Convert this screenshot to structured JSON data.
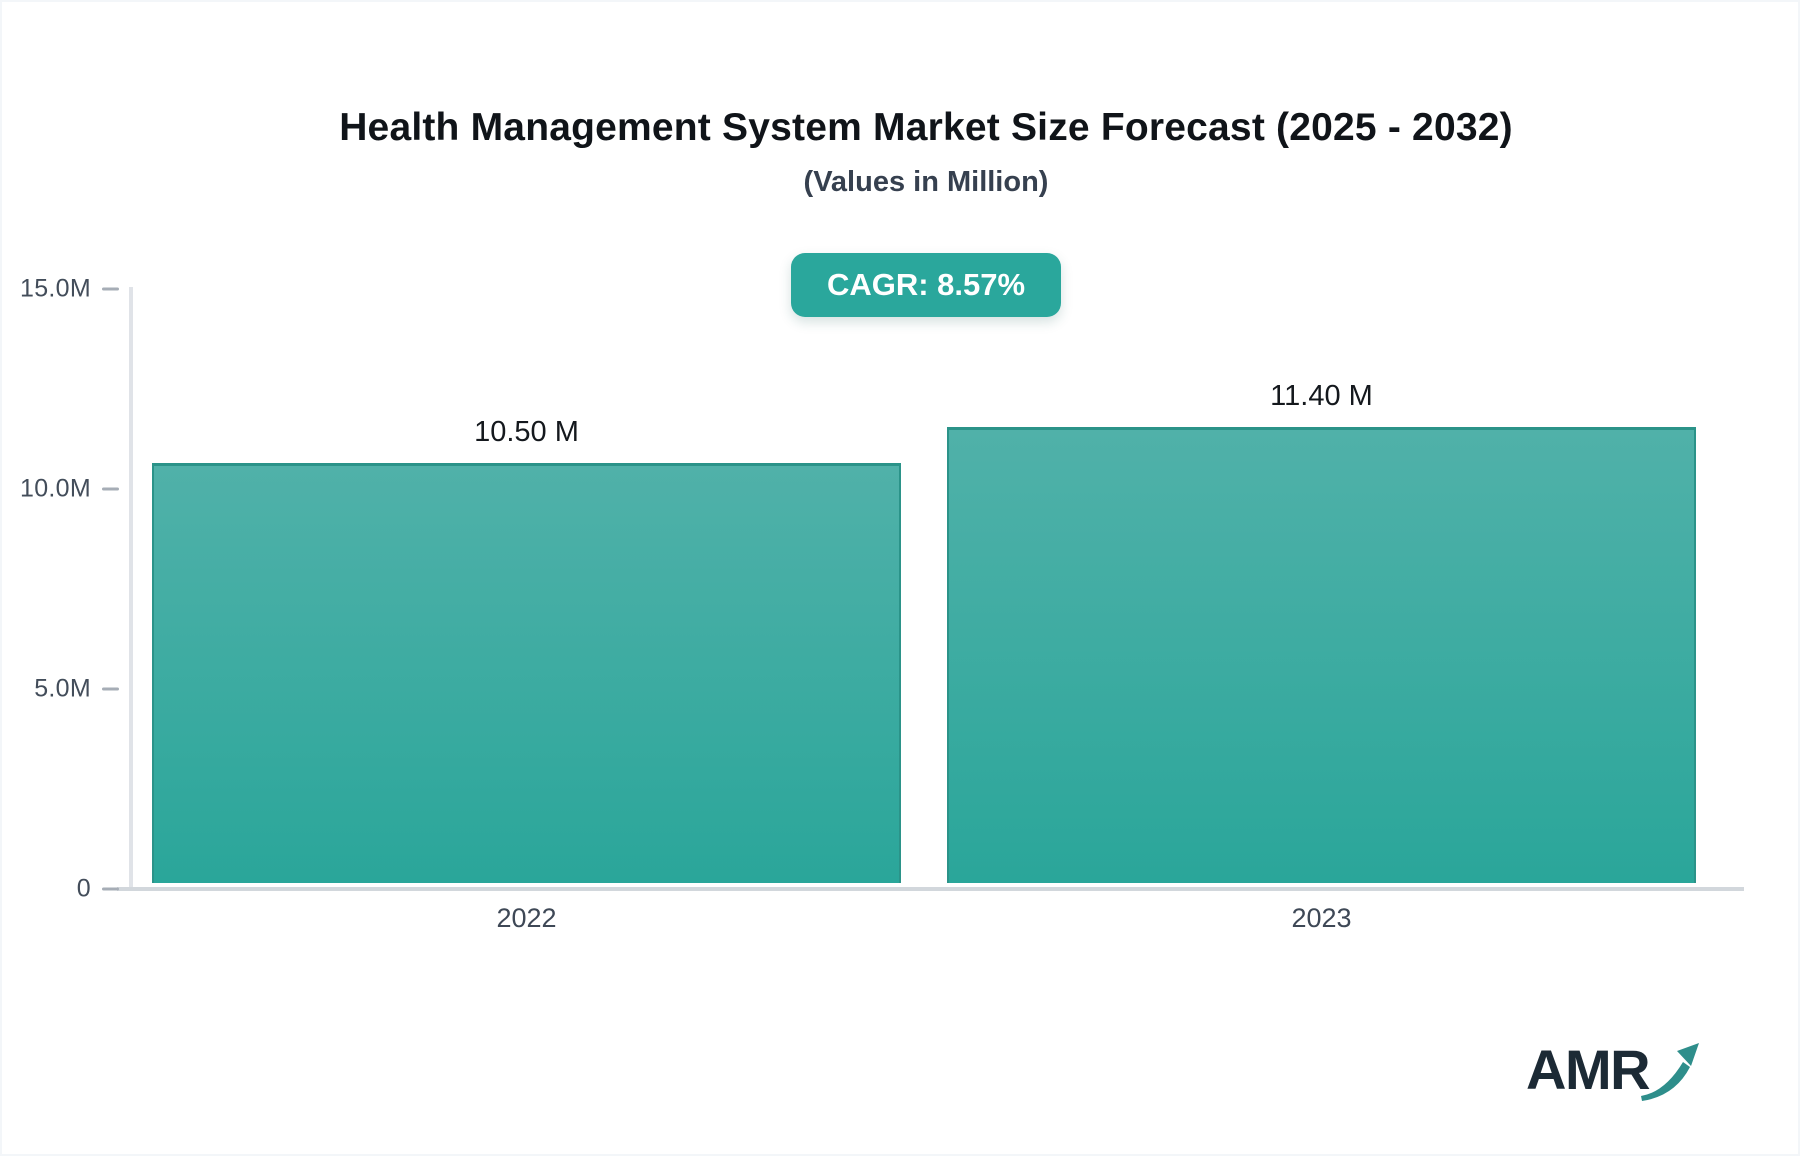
{
  "title": "Health Management System Market Size Forecast (2025 - 2032)",
  "subtitle": "(Values in Million)",
  "badge": {
    "label": "CAGR: 8.57%",
    "bg_color": "#2aa79c",
    "text_color": "#ffffff"
  },
  "chart_data": {
    "type": "bar",
    "title": "Health Management System Market Size Forecast (2025 - 2032)",
    "subtitle": "(Values in Million)",
    "categories": [
      "2022",
      "2023"
    ],
    "values": [
      10.5,
      11.4
    ],
    "value_labels": [
      "10.50 M",
      "11.40 M"
    ],
    "xlabel": "",
    "ylabel": "",
    "ylim": [
      0,
      15
    ],
    "yticks": {
      "values": [
        15,
        10,
        5,
        0
      ],
      "labels": [
        "15.0M",
        "10.0M",
        "5.0M",
        "0"
      ]
    },
    "grid": "off",
    "legend": "none",
    "bar_gradient_top": "#50b1a9",
    "bar_gradient_bottom": "#2aa69a",
    "bar_border": "#2b9389",
    "axis_line_color": "#d8dce1"
  },
  "logo": {
    "text": "AMR",
    "arrow_icon": "trend-up-arrow",
    "text_color": "#1c2a35",
    "arrow_color": "#2e8e8b"
  }
}
